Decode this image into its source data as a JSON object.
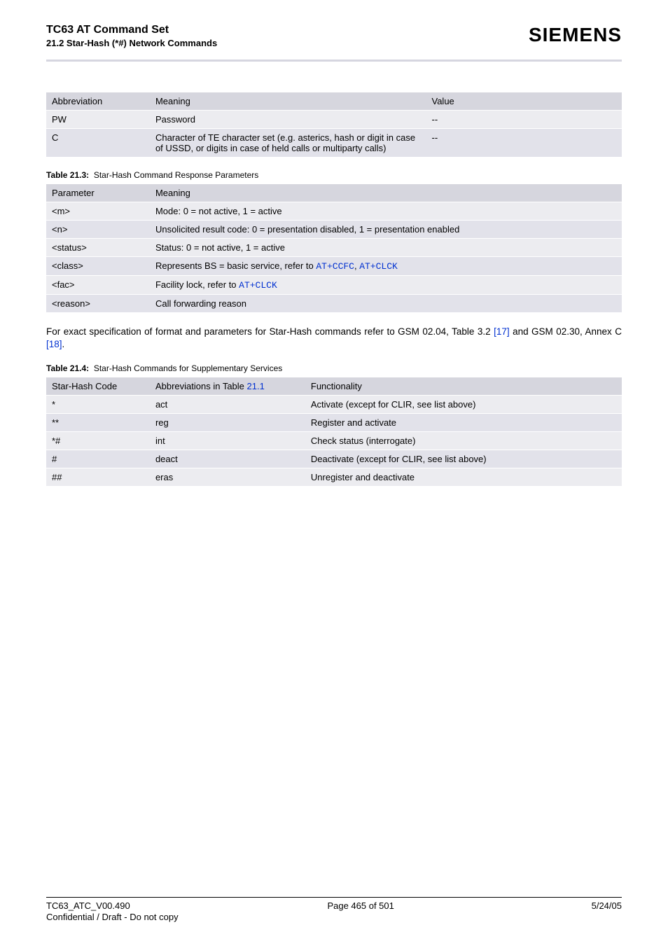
{
  "header": {
    "title": "TC63 AT Command Set",
    "subtitle": "21.2 Star-Hash (*#) Network Commands",
    "logo": "SIEMENS"
  },
  "table1": {
    "columns": [
      "Abbreviation",
      "Meaning",
      "Value"
    ],
    "rows": [
      [
        "PW",
        "Password",
        "--"
      ],
      [
        "C",
        "Character of TE character set (e.g. asterics, hash or digit in case of USSD, or digits in case of held calls or multiparty calls)",
        "--"
      ]
    ]
  },
  "caption213": {
    "label": "Table 21.3:",
    "text": "Star-Hash Command Response Parameters"
  },
  "table2": {
    "columns": [
      "Parameter",
      "Meaning"
    ],
    "rows": [
      {
        "p": "<m>",
        "m": "Mode: 0 = not active, 1 = active"
      },
      {
        "p": "<n>",
        "m": "Unsolicited result code: 0 = presentation disabled, 1 = presentation enabled"
      },
      {
        "p": "<status>",
        "m": "Status: 0 = not active, 1 = active"
      },
      {
        "p": "<class>",
        "m_pre": "Represents BS = basic service, refer to ",
        "links": [
          "AT+CCFC",
          "AT+CLCK"
        ],
        "sep": ", "
      },
      {
        "p": "<fac>",
        "m_pre": "Facility lock, refer to ",
        "links": [
          "AT+CLCK"
        ]
      },
      {
        "p": "<reason>",
        "m": "Call forwarding reason"
      }
    ]
  },
  "para": {
    "t1": "For exact specification of format and parameters for Star-Hash commands refer to GSM 02.04, Table 3.2 ",
    "ref1": "[17]",
    "t2": " and GSM 02.30, Annex C ",
    "ref2": "[18]",
    "t3": "."
  },
  "caption214": {
    "label": "Table 21.4:",
    "text": "Star-Hash Commands for Supplementary Services"
  },
  "table3": {
    "columns": [
      "Star-Hash Code",
      "Abbreviations in Table ",
      "Functionality"
    ],
    "col2_linkref": "21.1",
    "rows": [
      [
        "*",
        "act",
        "Activate (except for CLIR, see list above)"
      ],
      [
        "**",
        "reg",
        "Register and activate"
      ],
      [
        "*#",
        "int",
        "Check status (interrogate)"
      ],
      [
        "#",
        "deact",
        "Deactivate (except for CLIR, see list above)"
      ],
      [
        "##",
        "eras",
        "Unregister and deactivate"
      ]
    ]
  },
  "footer": {
    "left": "TC63_ATC_V00.490",
    "center": "Page 465 of 501",
    "right": "5/24/05",
    "sub": "Confidential / Draft - Do not copy"
  },
  "style": {
    "page_bg": "#ffffff",
    "header_row_bg": "#d6d6de",
    "row_odd_bg": "#ececf0",
    "row_even_bg": "#e2e2ea",
    "hr_color": "#d6d6e0",
    "link_color": "#0030d0",
    "base_fontsize": 13,
    "caption_fontsize": 12,
    "title_fontsize": 16,
    "logo_fontsize": 28
  }
}
